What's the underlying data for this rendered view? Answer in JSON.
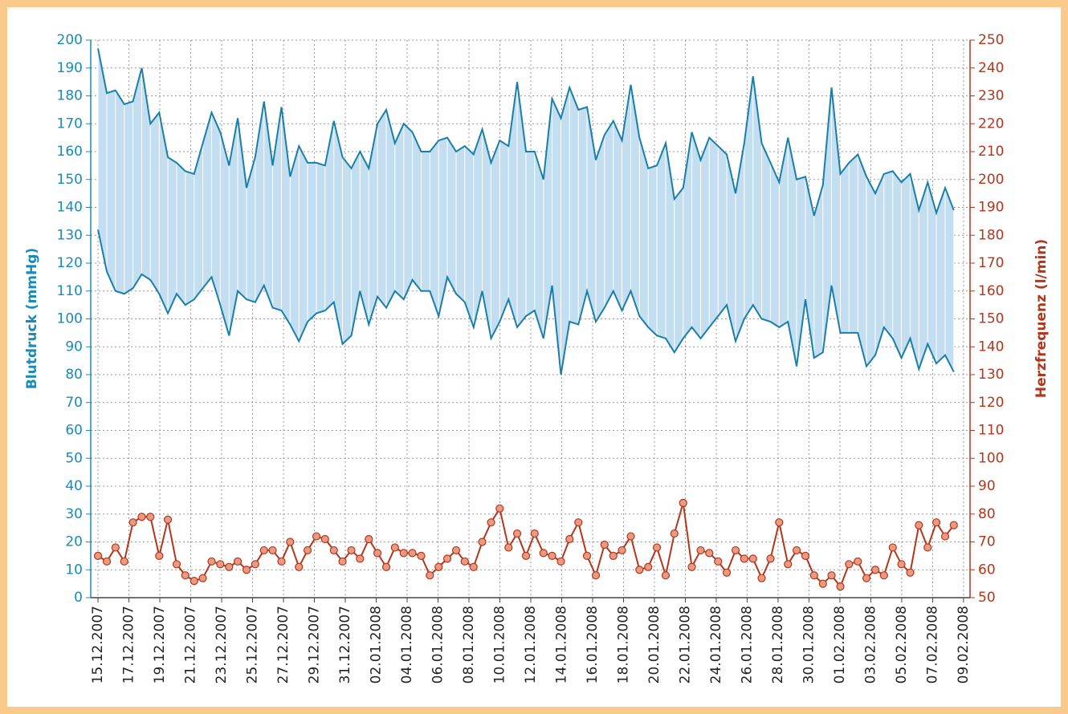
{
  "chart_data": {
    "type": "line",
    "y_label": "Blutdruck (mmHg)",
    "y2_label": "Herzfrequenz (l/min)",
    "x": [
      0,
      0.57,
      1.13,
      1.7,
      2.26,
      2.83,
      3.39,
      3.96,
      4.52,
      5.09,
      5.65,
      6.22,
      6.78,
      7.35,
      7.91,
      8.48,
      9.04,
      9.61,
      10.17,
      10.74,
      11.3,
      11.87,
      12.43,
      13.0,
      13.56,
      14.13,
      14.69,
      15.26,
      15.82,
      16.39,
      16.95,
      17.52,
      18.08,
      18.65,
      19.21,
      19.78,
      20.34,
      20.91,
      21.47,
      22.04,
      22.6,
      23.17,
      23.73,
      24.3,
      24.86,
      25.43,
      25.99,
      26.56,
      27.12,
      27.69,
      28.25,
      28.82,
      29.38,
      29.95,
      30.51,
      31.08,
      31.64,
      32.21,
      32.77,
      33.34,
      33.9,
      34.47,
      35.03,
      35.6,
      36.16,
      36.73,
      37.29,
      37.86,
      38.42,
      38.99,
      39.55,
      40.12,
      40.68,
      41.25,
      41.81,
      42.38,
      42.94,
      43.51,
      44.07,
      44.64,
      45.2,
      45.77,
      46.33,
      46.9,
      47.46,
      48.03,
      48.59,
      49.16,
      49.72,
      50.29,
      50.85,
      51.42,
      51.98,
      52.55,
      53.11,
      53.68,
      54.24,
      54.81,
      55.37
    ],
    "series": [
      {
        "color": "#1a7fa8",
        "values": [
          197,
          181,
          182,
          177,
          178,
          190,
          170,
          174,
          158,
          156,
          153,
          152,
          163,
          174,
          167,
          155,
          172,
          147,
          158,
          178,
          155,
          176,
          151,
          162,
          156,
          156,
          155,
          171,
          158,
          154,
          160,
          154,
          170,
          175,
          163,
          170,
          167,
          160,
          160,
          164,
          165,
          160,
          162,
          159,
          168,
          156,
          164,
          162,
          185,
          160,
          160,
          150,
          179,
          172,
          183,
          175,
          176,
          157,
          166,
          171,
          164,
          184,
          165,
          154,
          155,
          163,
          143,
          147,
          167,
          157,
          165,
          162,
          159,
          145,
          163,
          187,
          163,
          156,
          149,
          165,
          150,
          151,
          137,
          148,
          183,
          152,
          156,
          159,
          151,
          145,
          152,
          153,
          149,
          152,
          139,
          149,
          138,
          147,
          139
        ]
      },
      {
        "color": "#1a7fa8",
        "values": [
          132,
          117,
          110,
          109,
          111,
          116,
          114,
          109,
          102,
          109,
          105,
          107,
          111,
          115,
          105,
          94,
          110,
          107,
          106,
          112,
          104,
          103,
          98,
          92,
          99,
          102,
          103,
          106,
          91,
          94,
          110,
          98,
          108,
          104,
          110,
          107,
          114,
          110,
          110,
          101,
          115,
          109,
          106,
          97,
          110,
          93,
          99,
          107,
          97,
          101,
          103,
          93,
          112,
          80,
          99,
          98,
          110,
          99,
          104,
          110,
          103,
          110,
          101,
          97,
          94,
          93,
          88,
          93,
          97,
          93,
          97,
          101,
          105,
          92,
          100,
          105,
          100,
          99,
          97,
          99,
          83,
          107,
          86,
          88,
          112,
          95,
          95,
          95,
          83,
          87,
          97,
          93,
          86,
          93,
          82,
          91,
          84,
          87,
          81
        ]
      },
      {
        "color": "#b5351a",
        "marker_color": "#eb9a82",
        "axis": "y2",
        "values": [
          65,
          63,
          68,
          63,
          77,
          79,
          79,
          65,
          78,
          62,
          58,
          56,
          57,
          63,
          62,
          61,
          63,
          60,
          62,
          67,
          67,
          63,
          70,
          61,
          67,
          72,
          71,
          67,
          63,
          67,
          64,
          71,
          66,
          61,
          68,
          66,
          66,
          65,
          58,
          61,
          64,
          67,
          63,
          61,
          70,
          77,
          82,
          68,
          73,
          65,
          73,
          66,
          65,
          63,
          71,
          77,
          65,
          58,
          69,
          65,
          67,
          72,
          60,
          61,
          68,
          58,
          73,
          84,
          61,
          67,
          66,
          63,
          59,
          67,
          64,
          64,
          57,
          64,
          77,
          62,
          67,
          65,
          58,
          55,
          58,
          54,
          62,
          63,
          57,
          60,
          58,
          68,
          62,
          59,
          76,
          68,
          77,
          72,
          76
        ]
      }
    ],
    "band_fill": "#c3def0",
    "y_color": "#1a8bb5",
    "y2_color": "#b5351a",
    "xlim": [
      -0.47,
      56.42
    ],
    "xticks": [
      {
        "value": 0,
        "label": "15.12.2007"
      },
      {
        "value": 2,
        "label": "17.12.2007"
      },
      {
        "value": 4,
        "label": "19.12.2007"
      },
      {
        "value": 6,
        "label": "21.12.2007"
      },
      {
        "value": 8,
        "label": "23.12.2007"
      },
      {
        "value": 10,
        "label": "25.12.2007"
      },
      {
        "value": 12,
        "label": "27.12.2007"
      },
      {
        "value": 14,
        "label": "29.12.2007"
      },
      {
        "value": 16,
        "label": "31.12.2007"
      },
      {
        "value": 18,
        "label": "02.01.2008"
      },
      {
        "value": 20,
        "label": "04.01.2008"
      },
      {
        "value": 22,
        "label": "06.01.2008"
      },
      {
        "value": 24,
        "label": "08.01.2008"
      },
      {
        "value": 26,
        "label": "10.01.2008"
      },
      {
        "value": 28,
        "label": "12.01.2008"
      },
      {
        "value": 30,
        "label": "14.01.2008"
      },
      {
        "value": 32,
        "label": "16.01.2008"
      },
      {
        "value": 34,
        "label": "18.01.2008"
      },
      {
        "value": 36,
        "label": "20.01.2008"
      },
      {
        "value": 38,
        "label": "22.01.2008"
      },
      {
        "value": 40,
        "label": "24.01.2008"
      },
      {
        "value": 42,
        "label": "26.01.2008"
      },
      {
        "value": 44,
        "label": "28.01.2008"
      },
      {
        "value": 46,
        "label": "30.01.2008"
      },
      {
        "value": 48,
        "label": "01.02.2008"
      },
      {
        "value": 50,
        "label": "03.02.2008"
      },
      {
        "value": 52,
        "label": "05.02.2008"
      },
      {
        "value": 54,
        "label": "07.02.2008"
      },
      {
        "value": 56,
        "label": "09.02.2008"
      }
    ],
    "ylim": [
      0,
      200
    ],
    "yticks": [
      0,
      10,
      20,
      30,
      40,
      50,
      60,
      70,
      80,
      90,
      100,
      110,
      120,
      130,
      140,
      150,
      160,
      170,
      180,
      190,
      200
    ],
    "y2lim": [
      50,
      250
    ],
    "y2ticks": [
      50,
      60,
      70,
      80,
      90,
      100,
      110,
      120,
      130,
      140,
      150,
      160,
      170,
      180,
      190,
      200,
      210,
      220,
      230,
      240,
      250
    ],
    "grid": true
  }
}
